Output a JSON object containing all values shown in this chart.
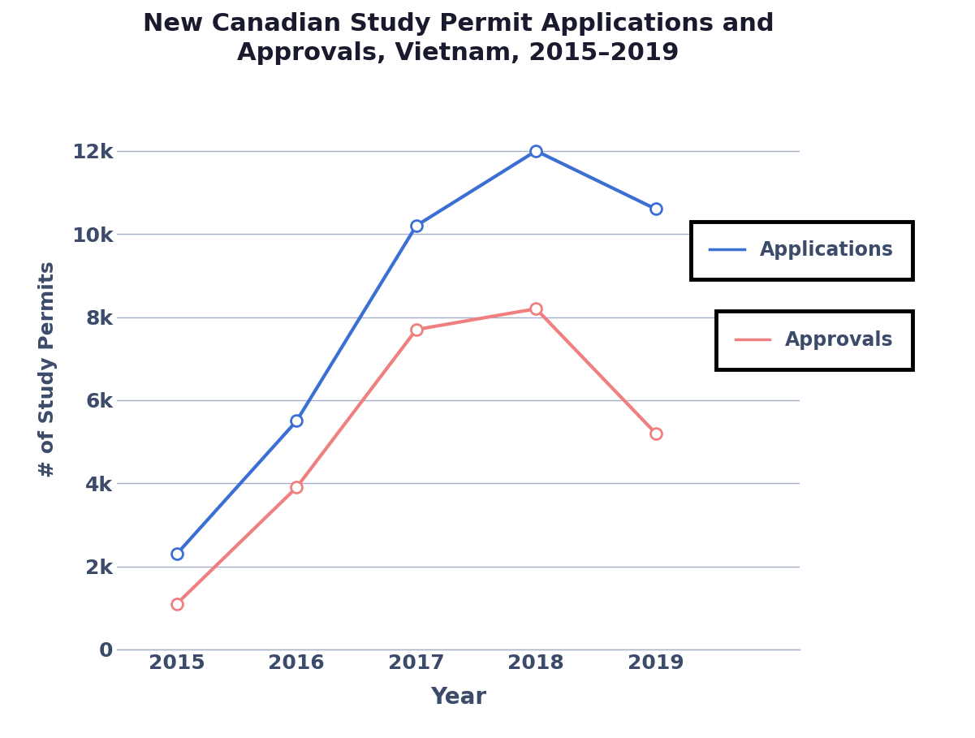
{
  "years": [
    2015,
    2016,
    2017,
    2018,
    2019
  ],
  "applications": [
    2300,
    5500,
    10200,
    12000,
    10600
  ],
  "approvals": [
    1100,
    3900,
    7700,
    8200,
    5200
  ],
  "app_color": "#3B6FD4",
  "appr_color": "#F08080",
  "title": "New Canadian Study Permit Applications and\nApprovals, Vietnam, 2015–2019",
  "xlabel": "Year",
  "ylabel": "# of Study Permits",
  "ylim": [
    0,
    13500
  ],
  "yticks": [
    0,
    2000,
    4000,
    6000,
    8000,
    10000,
    12000
  ],
  "ytick_labels": [
    "0",
    "2k",
    "4k",
    "6k",
    "8k",
    "10k",
    "12k"
  ],
  "legend_app": "Applications",
  "legend_appr": "Approvals",
  "bg_color": "#ffffff",
  "grid_color": "#6B7BA4",
  "text_color": "#3D4B6B",
  "line_width": 3.0,
  "marker_size": 10
}
